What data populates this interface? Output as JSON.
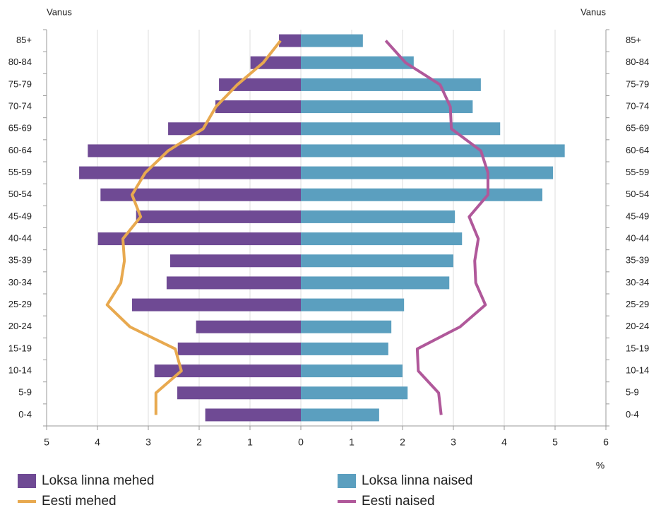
{
  "chart_data": {
    "type": "pyramid",
    "y_label_left": "Vanus",
    "y_label_right": "Vanus",
    "x_unit": "%",
    "categories": [
      "85+",
      "80-84",
      "75-79",
      "70-74",
      "65-69",
      "60-64",
      "55-59",
      "50-54",
      "45-49",
      "40-44",
      "35-39",
      "30-34",
      "25-29",
      "20-24",
      "15-19",
      "10-14",
      "5-9",
      "0-4"
    ],
    "series": [
      {
        "name": "Loksa linna mehed",
        "kind": "bar",
        "side": "left",
        "color": "#6f4a94",
        "values": [
          0.43,
          0.99,
          1.61,
          1.68,
          2.61,
          4.19,
          4.36,
          3.94,
          3.24,
          3.99,
          2.57,
          2.64,
          3.32,
          2.06,
          2.42,
          2.88,
          2.43,
          1.88
        ]
      },
      {
        "name": "Loksa linna naised",
        "kind": "bar",
        "side": "right",
        "color": "#5b9fbf",
        "values": [
          1.22,
          2.22,
          3.54,
          3.38,
          3.92,
          5.19,
          4.96,
          4.75,
          3.03,
          3.17,
          3.0,
          2.92,
          2.03,
          1.78,
          1.72,
          2.0,
          2.1,
          1.54
        ]
      },
      {
        "name": "Eesti mehed",
        "kind": "line",
        "side": "left",
        "color": "#e8a94f",
        "values": [
          0.4,
          0.74,
          1.25,
          1.67,
          1.92,
          2.61,
          3.06,
          3.32,
          3.15,
          3.5,
          3.47,
          3.54,
          3.81,
          3.36,
          2.47,
          2.35,
          2.85,
          2.85
        ]
      },
      {
        "name": "Eesti naised",
        "kind": "line",
        "side": "right",
        "color": "#b0589a",
        "values": [
          1.67,
          2.06,
          2.74,
          2.94,
          2.96,
          3.54,
          3.68,
          3.68,
          3.31,
          3.49,
          3.42,
          3.44,
          3.63,
          3.13,
          2.29,
          2.31,
          2.71,
          2.76
        ]
      }
    ],
    "xlim": [
      -5,
      6
    ],
    "xticks": [
      {
        "value": -5,
        "label": "5"
      },
      {
        "value": -4,
        "label": "4"
      },
      {
        "value": -3,
        "label": "3"
      },
      {
        "value": -2,
        "label": "2"
      },
      {
        "value": -1,
        "label": "1"
      },
      0,
      1,
      2,
      3,
      4,
      5,
      6
    ],
    "grid": true
  }
}
